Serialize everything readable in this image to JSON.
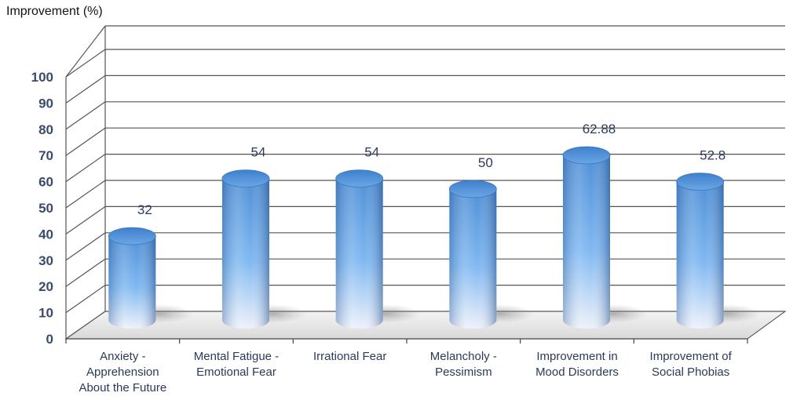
{
  "chart_data": {
    "type": "bar",
    "style": "3d-cylinder",
    "title": "Improvement (%)",
    "categories": [
      "Anxiety - Apprehension About the Future",
      "Mental Fatigue - Emotional Fear",
      "Irrational Fear",
      "Melancholy - Pessimism",
      "Improvement in Mood Disorders",
      "Improvement of Social Phobias"
    ],
    "category_lines": [
      [
        "Anxiety -",
        "Apprehension",
        "About the Future"
      ],
      [
        "Mental Fatigue -",
        "Emotional Fear"
      ],
      [
        "Irrational Fear"
      ],
      [
        "Melancholy -",
        "Pessimism"
      ],
      [
        "Improvement in",
        "Mood Disorders"
      ],
      [
        "Improvement of",
        "Social Phobias"
      ]
    ],
    "values": [
      32,
      54,
      54,
      50,
      62.88,
      52.8
    ],
    "data_labels": [
      "32",
      "54",
      "54",
      "50",
      "62.88",
      "52.8"
    ],
    "ylim": [
      0,
      100
    ],
    "yticks": [
      0,
      10,
      20,
      30,
      40,
      50,
      60,
      70,
      80,
      90,
      100
    ],
    "grid": true,
    "legend": "none",
    "colors": {
      "bar_top": "#5f9fe0",
      "bar_mid": "#7fb8f2",
      "bar_bottom": "#e8ecf6",
      "grid": "#555555",
      "tick_text": "#3a4a6b"
    }
  }
}
